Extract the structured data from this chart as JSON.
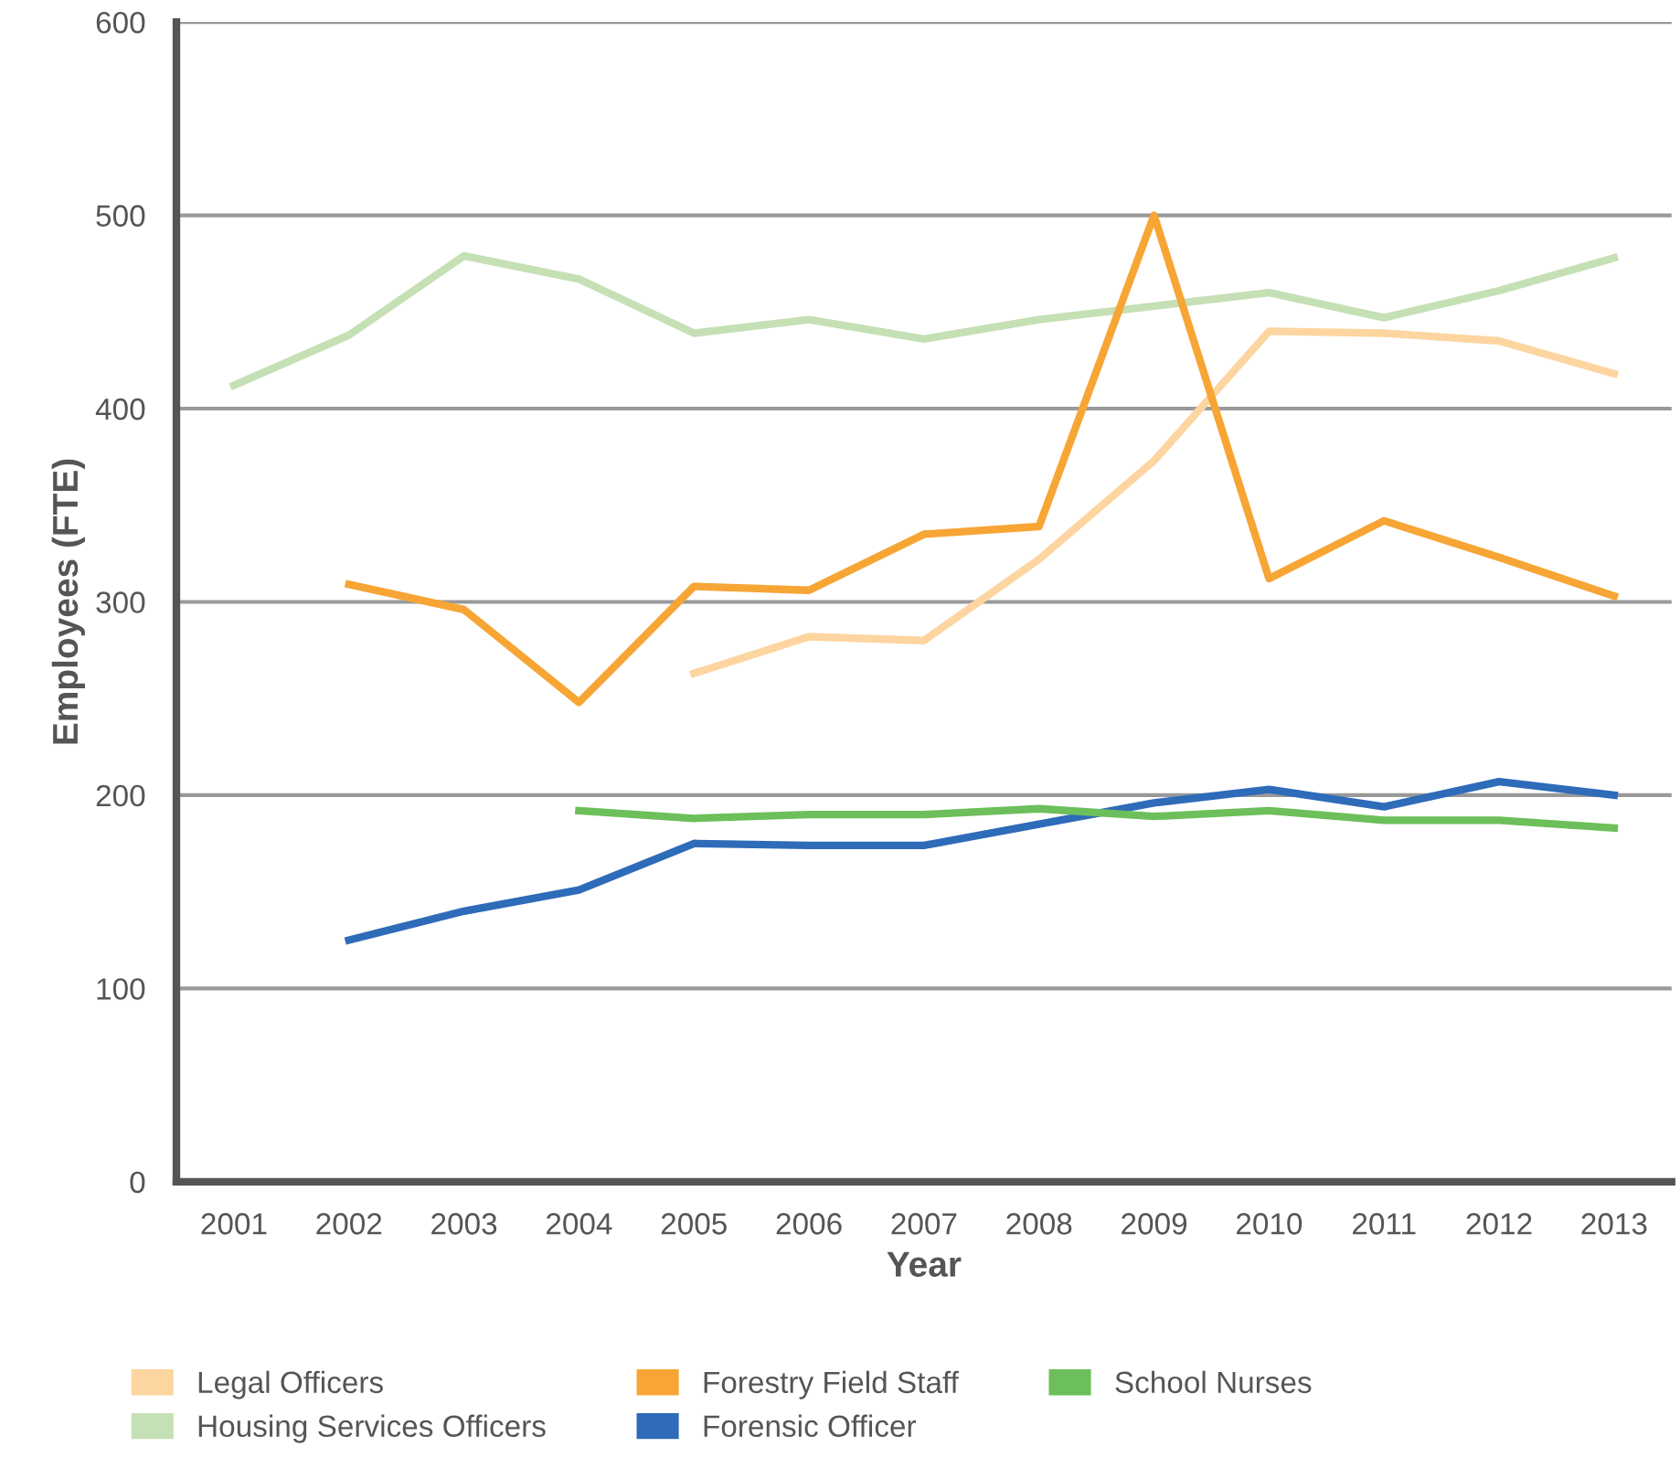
{
  "chart_data": {
    "type": "line",
    "xlabel": "Year",
    "ylabel": "Employees (FTE)",
    "categories": [
      "2001",
      "2002",
      "2003",
      "2004",
      "2005",
      "2006",
      "2007",
      "2008",
      "2009",
      "2010",
      "2011",
      "2012",
      "2013"
    ],
    "ylim": [
      0,
      600
    ],
    "yticks": [
      0,
      100,
      200,
      300,
      400,
      500,
      600
    ],
    "grid": "y",
    "legend": "bottom",
    "marker": "none",
    "series": [
      {
        "name": "Legal Officers",
        "color": "#fdd5a0",
        "values": [
          null,
          null,
          null,
          null,
          263,
          282,
          280,
          322,
          373,
          440,
          439,
          435,
          418
        ]
      },
      {
        "name": "Housing Services Officers",
        "color": "#c5e0b4",
        "values": [
          412,
          438,
          479,
          467,
          439,
          446,
          436,
          446,
          453,
          460,
          447,
          461,
          478
        ]
      },
      {
        "name": "Forestry Field Staff",
        "color": "#f7a535",
        "values": [
          null,
          309,
          296,
          248,
          308,
          306,
          335,
          339,
          500,
          312,
          342,
          323,
          303
        ]
      },
      {
        "name": "Forensic Officer",
        "color": "#2e6bb8",
        "values": [
          null,
          125,
          140,
          151,
          175,
          174,
          174,
          185,
          196,
          203,
          194,
          207,
          200
        ]
      },
      {
        "name": "School Nurses",
        "color": "#6cbf5a",
        "values": [
          null,
          null,
          null,
          192,
          188,
          190,
          190,
          193,
          189,
          192,
          187,
          187,
          183
        ]
      }
    ]
  }
}
